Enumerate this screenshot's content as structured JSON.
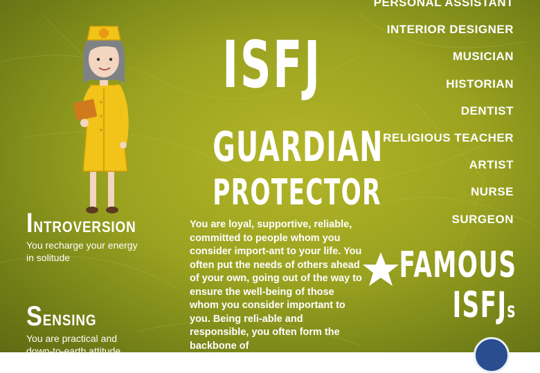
{
  "headline": {
    "type": "ISFJ",
    "subtitle_1": "GUARDIAN",
    "subtitle_2": "PROTECTOR"
  },
  "traits": [
    {
      "initial": "I",
      "rest": "NTROVERSION",
      "description_1": "You recharge your energy",
      "description_2": "in solitude"
    },
    {
      "initial": "S",
      "rest": "ENSING",
      "description_1": "You are practical and",
      "description_2": "down-to-earth attitude"
    }
  ],
  "description": "You are loyal, supportive, reliable, committed to people whom you consider import-ant to your life. You often put the needs of others ahead of your own, going out of the way to ensure the well-being of those whom you consider important to you. Being reli-able and responsible, you often form the backbone of",
  "careers": [
    "PERSONAL ASSISTANT",
    "INTERIOR DESIGNER",
    "MUSICIAN",
    "HISTORIAN",
    "DENTIST",
    "RELIGIOUS TEACHER",
    "ARTIST",
    "NURSE",
    "SURGEON"
  ],
  "famous": {
    "line_1": "FAMOUS",
    "line_2_main": "ISFJ",
    "line_2_suffix": "s",
    "icon": "star-icon"
  },
  "colors": {
    "background": "#9aa220",
    "text": "#ffffff",
    "uniform": "#f2c318",
    "hair": "#7e8285"
  }
}
